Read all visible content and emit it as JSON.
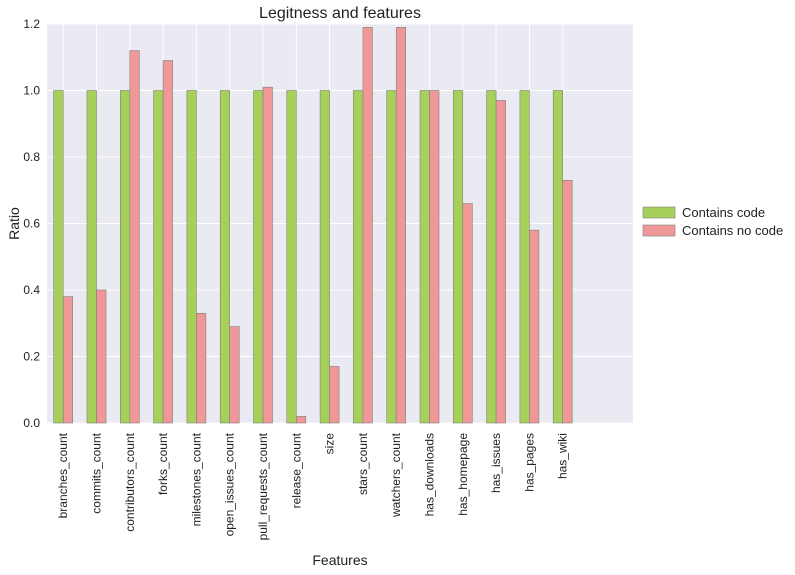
{
  "chart_data": {
    "type": "bar",
    "title": "Legitness and features",
    "xlabel": "Features",
    "ylabel": "Ratio",
    "ylim": [
      0,
      1.2
    ],
    "yticks": [
      "0.0",
      "0.2",
      "0.4",
      "0.6",
      "0.8",
      "1.0",
      "1.2"
    ],
    "grid": true,
    "legend_position": "right",
    "categories": [
      "branches_count",
      "commits_count",
      "contributors_count",
      "forks_count",
      "milestones_count",
      "open_issues_count",
      "pull_requests_count",
      "release_count",
      "size",
      "stars_count",
      "watchers_count",
      "has_downloads",
      "has_homepage",
      "has_issues",
      "has_pages",
      "has_wiki"
    ],
    "series": [
      {
        "name": "Contains code",
        "color": "#a6d05a",
        "values": [
          1.0,
          1.0,
          1.0,
          1.0,
          1.0,
          1.0,
          1.0,
          1.0,
          1.0,
          1.0,
          1.0,
          1.0,
          1.0,
          1.0,
          1.0,
          1.0
        ]
      },
      {
        "name": "Contains no code",
        "color": "#f09898",
        "values": [
          0.38,
          0.4,
          1.12,
          1.09,
          0.33,
          0.29,
          1.01,
          0.02,
          0.17,
          1.19,
          1.19,
          1.0,
          0.66,
          0.97,
          0.58,
          0.73
        ]
      }
    ]
  }
}
